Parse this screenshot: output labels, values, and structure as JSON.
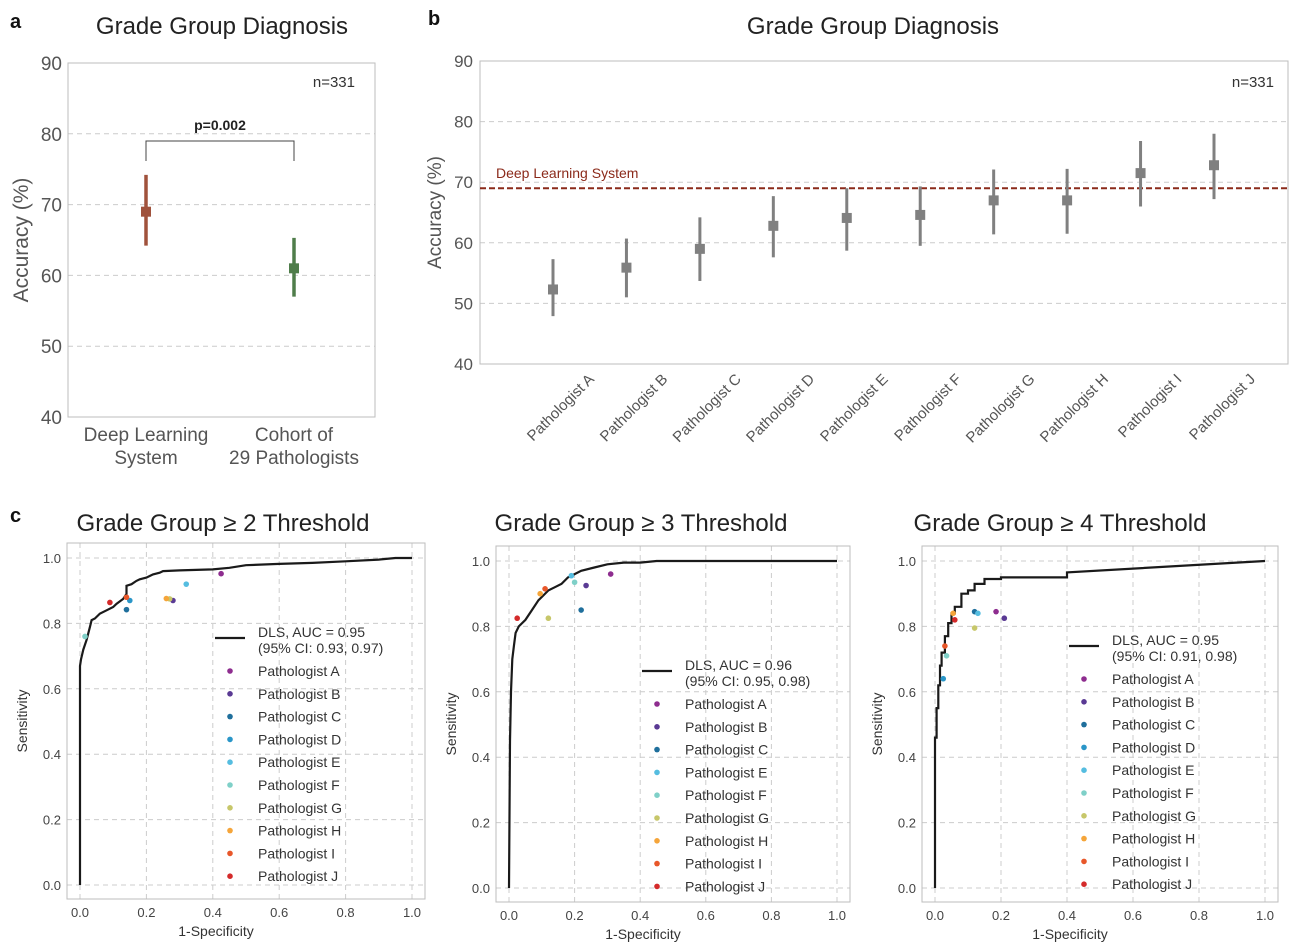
{
  "chart_data": [
    {
      "id": "a",
      "type": "scatter",
      "panel_label": "a",
      "title": "Grade Group Diagnosis",
      "xlabel": "",
      "ylabel": "Accuracy (%)",
      "ylim": [
        40,
        90
      ],
      "yticks": [
        40,
        50,
        60,
        70,
        80,
        90
      ],
      "grid": true,
      "annotation": "n=331",
      "significance": "p=0.002",
      "categories": [
        "Deep Learning\nSystem",
        "Cohort of\n29 Pathologists"
      ],
      "values": [
        69,
        61
      ],
      "ci_low": [
        64.2,
        57
      ],
      "ci_high": [
        74.2,
        65.3
      ],
      "colors": [
        "#a0523c",
        "#4f7d4a"
      ]
    },
    {
      "id": "b",
      "type": "scatter",
      "panel_label": "b",
      "title": "Grade Group Diagnosis",
      "xlabel": "",
      "ylabel": "Accuracy (%)",
      "ylim": [
        40,
        90
      ],
      "yticks": [
        40,
        50,
        60,
        70,
        80,
        90
      ],
      "grid": true,
      "annotation": "n=331",
      "reference_line": {
        "label": "Deep Learning System",
        "value": 69,
        "color": "#8b2a1a"
      },
      "categories": [
        "Pathologist A",
        "Pathologist B",
        "Pathologist C",
        "Pathologist D",
        "Pathologist E",
        "Pathologist F",
        "Pathologist G",
        "Pathologist H",
        "Pathologist I",
        "Pathologist J"
      ],
      "values": [
        52.3,
        55.9,
        59,
        62.8,
        64.1,
        64.6,
        67,
        67,
        71.5,
        72.8
      ],
      "ci_low": [
        47.9,
        51,
        53.7,
        57.6,
        58.7,
        59.5,
        61.4,
        61.5,
        66,
        67.2
      ],
      "ci_high": [
        57.3,
        60.7,
        64.2,
        67.7,
        69,
        69.3,
        72.1,
        72.2,
        76.8,
        78
      ],
      "color": "#808080"
    },
    {
      "id": "c1",
      "type": "line",
      "panel_label": "c",
      "title": "Grade Group ≥ 2 Threshold",
      "xlabel": "1-Specificity",
      "ylabel": "Sensitivity",
      "xlim": [
        0,
        1
      ],
      "ylim": [
        0,
        1
      ],
      "ticks": [
        "0.0",
        "0.2",
        "0.4",
        "0.6",
        "0.8",
        "1.0"
      ],
      "grid": true,
      "legend_position": "right",
      "roc": {
        "name": "DLS, AUC = 0.95\n(95% CI: 0.93, 0.97)",
        "x": [
          0,
          0,
          0.003,
          0.01,
          0.02,
          0.03,
          0.035,
          0.045,
          0.06,
          0.08,
          0.1,
          0.11,
          0.13,
          0.14,
          0.14,
          0.155,
          0.17,
          0.18,
          0.2,
          0.21,
          0.22,
          0.24,
          0.25,
          0.3,
          0.4,
          0.45,
          0.5,
          0.6,
          0.7,
          0.8,
          0.9,
          0.95,
          1.0
        ],
        "y": [
          0,
          0.67,
          0.69,
          0.72,
          0.75,
          0.79,
          0.81,
          0.815,
          0.83,
          0.84,
          0.85,
          0.86,
          0.875,
          0.89,
          0.915,
          0.92,
          0.93,
          0.935,
          0.94,
          0.945,
          0.95,
          0.955,
          0.96,
          0.962,
          0.965,
          0.97,
          0.978,
          0.982,
          0.985,
          0.99,
          0.995,
          1.0,
          1.0
        ]
      },
      "pathologists": [
        {
          "name": "Pathologist A",
          "color": "#8e2d8f",
          "x": 0.425,
          "y": 0.952
        },
        {
          "name": "Pathologist B",
          "color": "#5a3a94",
          "x": 0.28,
          "y": 0.87
        },
        {
          "name": "Pathologist C",
          "color": "#1f6f9c",
          "x": 0.14,
          "y": 0.842
        },
        {
          "name": "Pathologist D",
          "color": "#2a96c8",
          "x": 0.15,
          "y": 0.87
        },
        {
          "name": "Pathologist E",
          "color": "#55bde0",
          "x": 0.32,
          "y": 0.92
        },
        {
          "name": "Pathologist F",
          "color": "#7fd0c8",
          "x": 0.015,
          "y": 0.76
        },
        {
          "name": "Pathologist G",
          "color": "#c7c76a",
          "x": 0.27,
          "y": 0.875
        },
        {
          "name": "Pathologist H",
          "color": "#f5a53a",
          "x": 0.26,
          "y": 0.876
        },
        {
          "name": "Pathologist I",
          "color": "#e8572a",
          "x": 0.14,
          "y": 0.88
        },
        {
          "name": "Pathologist J",
          "color": "#d42a2a",
          "x": 0.09,
          "y": 0.864
        }
      ]
    },
    {
      "id": "c2",
      "type": "line",
      "panel_label": "",
      "title": "Grade Group ≥ 3 Threshold",
      "xlabel": "1-Specificity",
      "ylabel": "Sensitivity",
      "xlim": [
        0,
        1
      ],
      "ylim": [
        0,
        1
      ],
      "ticks": [
        "0.0",
        "0.2",
        "0.4",
        "0.6",
        "0.8",
        "1.0"
      ],
      "grid": true,
      "legend_position": "right",
      "roc": {
        "name": "DLS, AUC = 0.96\n(95% CI: 0.95, 0.98)",
        "x": [
          0,
          0.003,
          0.006,
          0.01,
          0.015,
          0.02,
          0.03,
          0.05,
          0.07,
          0.09,
          0.1,
          0.12,
          0.14,
          0.16,
          0.18,
          0.2,
          0.22,
          0.26,
          0.3,
          0.35,
          0.4,
          0.45,
          0.5,
          0.6,
          0.7,
          0.8,
          0.9,
          1.0
        ],
        "y": [
          0,
          0.45,
          0.6,
          0.7,
          0.74,
          0.78,
          0.8,
          0.82,
          0.85,
          0.88,
          0.89,
          0.91,
          0.92,
          0.93,
          0.95,
          0.96,
          0.97,
          0.98,
          0.99,
          0.995,
          0.995,
          1.0,
          1.0,
          1.0,
          1.0,
          1.0,
          1.0,
          1.0
        ]
      },
      "pathologists": [
        {
          "name": "Pathologist A",
          "color": "#8e2d8f",
          "x": 0.31,
          "y": 0.96
        },
        {
          "name": "Pathologist B",
          "color": "#5a3a94",
          "x": 0.235,
          "y": 0.925
        },
        {
          "name": "Pathologist C",
          "color": "#1f6f9c",
          "x": 0.22,
          "y": 0.85
        },
        {
          "name": "Pathologist E",
          "color": "#55bde0",
          "x": 0.19,
          "y": 0.955
        },
        {
          "name": "Pathologist F",
          "color": "#7fd0c8",
          "x": 0.2,
          "y": 0.935
        },
        {
          "name": "Pathologist G",
          "color": "#c7c76a",
          "x": 0.12,
          "y": 0.825
        },
        {
          "name": "Pathologist H",
          "color": "#f5a53a",
          "x": 0.095,
          "y": 0.9
        },
        {
          "name": "Pathologist I",
          "color": "#e8572a",
          "x": 0.11,
          "y": 0.915
        },
        {
          "name": "Pathologist J",
          "color": "#d42a2a",
          "x": 0.025,
          "y": 0.825
        }
      ]
    },
    {
      "id": "c3",
      "type": "line",
      "panel_label": "",
      "title": "Grade Group ≥ 4 Threshold",
      "xlabel": "1-Specificity",
      "ylabel": "Sensitivity",
      "xlim": [
        0,
        1
      ],
      "ylim": [
        0,
        1
      ],
      "ticks": [
        "0.0",
        "0.2",
        "0.4",
        "0.6",
        "0.8",
        "1.0"
      ],
      "grid": true,
      "legend_position": "right",
      "roc": {
        "name": "DLS, AUC = 0.95\n(95% CI: 0.91, 0.98)",
        "x": [
          0,
          0,
          0.005,
          0.005,
          0.01,
          0.01,
          0.015,
          0.015,
          0.02,
          0.02,
          0.03,
          0.03,
          0.04,
          0.04,
          0.05,
          0.05,
          0.06,
          0.06,
          0.08,
          0.08,
          0.1,
          0.1,
          0.12,
          0.12,
          0.15,
          0.15,
          0.2,
          0.2,
          0.4,
          0.4,
          1.0
        ],
        "y": [
          0,
          0.46,
          0.46,
          0.55,
          0.55,
          0.62,
          0.62,
          0.68,
          0.68,
          0.72,
          0.72,
          0.77,
          0.77,
          0.81,
          0.81,
          0.84,
          0.84,
          0.86,
          0.86,
          0.9,
          0.9,
          0.91,
          0.91,
          0.93,
          0.93,
          0.945,
          0.945,
          0.95,
          0.95,
          0.965,
          1.0
        ]
      },
      "pathologists": [
        {
          "name": "Pathologist A",
          "color": "#8e2d8f",
          "x": 0.185,
          "y": 0.845
        },
        {
          "name": "Pathologist B",
          "color": "#5a3a94",
          "x": 0.21,
          "y": 0.825
        },
        {
          "name": "Pathologist C",
          "color": "#1f6f9c",
          "x": 0.12,
          "y": 0.845
        },
        {
          "name": "Pathologist D",
          "color": "#2a96c8",
          "x": 0.025,
          "y": 0.64
        },
        {
          "name": "Pathologist E",
          "color": "#55bde0",
          "x": 0.13,
          "y": 0.84
        },
        {
          "name": "Pathologist F",
          "color": "#7fd0c8",
          "x": 0.035,
          "y": 0.71
        },
        {
          "name": "Pathologist G",
          "color": "#c7c76a",
          "x": 0.12,
          "y": 0.795
        },
        {
          "name": "Pathologist H",
          "color": "#f5a53a",
          "x": 0.055,
          "y": 0.84
        },
        {
          "name": "Pathologist I",
          "color": "#e8572a",
          "x": 0.03,
          "y": 0.74
        },
        {
          "name": "Pathologist J",
          "color": "#d42a2a",
          "x": 0.06,
          "y": 0.82
        }
      ]
    }
  ]
}
